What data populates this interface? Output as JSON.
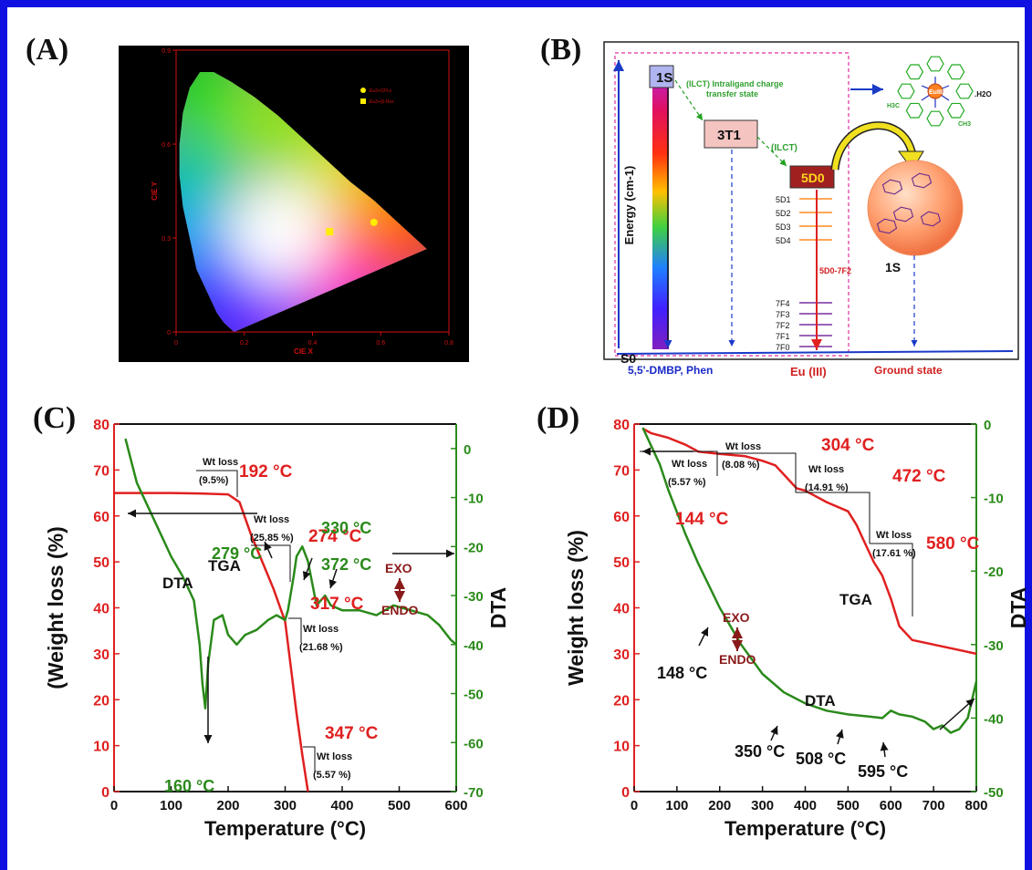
{
  "panel_labels": [
    "(A)",
    "(B)",
    "(C)",
    "(D)"
  ],
  "chart_data": [
    {
      "panel": "(A)",
      "type": "scatter",
      "xlabel": "CIE X",
      "ylabel": "CIE Y",
      "xlim": [
        0,
        0.8
      ],
      "ylim": [
        0,
        0.9
      ],
      "x_ticks": [
        "0",
        "0.2",
        "0.4",
        "0.6",
        "0.8"
      ],
      "y_ticks": [
        "0",
        "0.3",
        "0.6",
        "0.9"
      ],
      "legend": [
        "Eu3+CPLx",
        "Eu3+/β-Dex"
      ],
      "legend_placement": "top-right",
      "background": "#000000",
      "axis_color": "#d01010",
      "series": [
        {
          "name": "Eu3+CPLx",
          "marker": "circle",
          "color": "#ffee00",
          "x": [
            0.58
          ],
          "y": [
            0.35
          ]
        },
        {
          "name": "Eu3+/β-Dex",
          "marker": "square",
          "color": "#ffee00",
          "x": [
            0.45
          ],
          "y": [
            0.32
          ]
        }
      ],
      "locus": [
        [
          0.17,
          0.0
        ],
        [
          0.14,
          0.03
        ],
        [
          0.12,
          0.06
        ],
        [
          0.09,
          0.13
        ],
        [
          0.06,
          0.2
        ],
        [
          0.04,
          0.3
        ],
        [
          0.02,
          0.4
        ],
        [
          0.01,
          0.5
        ],
        [
          0.01,
          0.6
        ],
        [
          0.02,
          0.7
        ],
        [
          0.04,
          0.78
        ],
        [
          0.07,
          0.83
        ],
        [
          0.11,
          0.83
        ],
        [
          0.16,
          0.8
        ],
        [
          0.23,
          0.75
        ],
        [
          0.3,
          0.69
        ],
        [
          0.37,
          0.62
        ],
        [
          0.44,
          0.55
        ],
        [
          0.51,
          0.48
        ],
        [
          0.58,
          0.42
        ],
        [
          0.65,
          0.35
        ],
        [
          0.735,
          0.265
        ]
      ]
    },
    {
      "panel": "(C)",
      "type": "line",
      "xlabel": "Temperature (°C)",
      "ylabel": "(Weight loss (%)",
      "y2label": "DTA",
      "xlim": [
        0,
        600
      ],
      "ylim": [
        0,
        80
      ],
      "y2lim": [
        -70,
        5
      ],
      "x_ticks": [
        0,
        100,
        200,
        300,
        400,
        500,
        600
      ],
      "y_ticks": [
        0,
        10,
        20,
        30,
        40,
        50,
        60,
        70,
        80
      ],
      "y2_ticks": [
        0,
        -10,
        -20,
        -30,
        -40,
        -50,
        -60,
        -70
      ],
      "series": [
        {
          "name": "TGA",
          "axis": "left",
          "color": "#e02020",
          "x": [
            0,
            100,
            150,
            200,
            220,
            240,
            260,
            280,
            300,
            310,
            320,
            330,
            340
          ],
          "y": [
            65,
            65,
            64.9,
            64.7,
            63,
            56,
            50,
            44,
            37,
            27,
            17,
            8,
            0
          ]
        },
        {
          "name": "DTA",
          "axis": "right",
          "color": "#2a8a1a",
          "x": [
            20,
            40,
            60,
            80,
            100,
            120,
            140,
            150,
            155,
            160,
            165,
            175,
            190,
            200,
            215,
            230,
            250,
            270,
            285,
            300,
            305,
            315,
            320,
            330,
            340,
            355,
            370,
            380,
            400,
            430,
            460,
            490,
            520,
            550,
            570,
            590,
            600
          ],
          "y": [
            2,
            -7,
            -12,
            -17,
            -22,
            -26,
            -31,
            -40,
            -48,
            -53,
            -44,
            -35,
            -34,
            -38,
            -40,
            -38,
            -37,
            -35,
            -34,
            -35,
            -33,
            -26,
            -22,
            -20,
            -23,
            -32,
            -30,
            -32,
            -33,
            -33,
            -34,
            -32,
            -33,
            -34,
            -36,
            -39,
            -40
          ]
        }
      ],
      "annotations": {
        "tga": [
          {
            "temp": "192 °C",
            "loss_label": "Wt loss",
            "loss": "(9.5%)"
          },
          {
            "temp": "274 °C",
            "loss_label": "Wt loss",
            "loss": "(25.85 %)"
          },
          {
            "temp": "317 °C",
            "loss_label": "Wt loss",
            "loss": "(21.68 %)"
          },
          {
            "temp": "347 °C",
            "loss_label": "Wt loss",
            "loss": "(5.57 %)"
          }
        ],
        "dta": [
          "160 °C",
          "279 °C",
          "330 °C",
          "372 °C"
        ],
        "labels": {
          "tga": "TGA",
          "dta": "DTA",
          "exo": "EXO",
          "endo": "ENDO"
        }
      }
    },
    {
      "panel": "(D)",
      "type": "line",
      "xlabel": "Temperature (°C)",
      "ylabel": "Weight loss (%)",
      "y2label": "DTA",
      "xlim": [
        0,
        800
      ],
      "ylim": [
        0,
        80
      ],
      "y2lim": [
        -50,
        0
      ],
      "x_ticks": [
        0,
        100,
        200,
        300,
        400,
        500,
        600,
        700,
        800
      ],
      "y_ticks": [
        0,
        10,
        20,
        30,
        40,
        50,
        60,
        70,
        80
      ],
      "y2_ticks": [
        0,
        -10,
        -20,
        -30,
        -40,
        -50
      ],
      "series": [
        {
          "name": "TGA",
          "axis": "left",
          "color": "#e02020",
          "x": [
            20,
            40,
            80,
            120,
            150,
            200,
            260,
            300,
            330,
            350,
            370,
            380,
            400,
            450,
            500,
            520,
            540,
            560,
            580,
            600,
            620,
            650,
            700,
            750,
            800
          ],
          "y": [
            79,
            78,
            77,
            75.5,
            74,
            73.5,
            73,
            72,
            71,
            69,
            67,
            66,
            65.5,
            63,
            61,
            58,
            54,
            50,
            47,
            42,
            36,
            33,
            32,
            31,
            30
          ]
        },
        {
          "name": "DTA",
          "axis": "right",
          "color": "#2a8a1a",
          "x": [
            20,
            40,
            60,
            80,
            100,
            120,
            150,
            200,
            250,
            300,
            350,
            400,
            450,
            500,
            550,
            580,
            600,
            620,
            650,
            680,
            700,
            720,
            740,
            760,
            780,
            800
          ],
          "y": [
            -0.5,
            -3,
            -5.5,
            -9,
            -12,
            -15,
            -19,
            -25,
            -30,
            -34,
            -36.5,
            -38,
            -39,
            -39.5,
            -39.8,
            -40,
            -39,
            -39.5,
            -39.8,
            -40.5,
            -41.5,
            -41,
            -42,
            -41.5,
            -40,
            -35
          ]
        }
      ],
      "annotations": {
        "tga": [
          {
            "temp": "144 °C",
            "loss_label": "Wt loss",
            "loss": "(5.57 %)"
          },
          {
            "temp": "304 °C",
            "loss_label": "Wt loss",
            "loss": "(8.08 %)"
          },
          {
            "temp": "472 °C",
            "loss_label": "Wt loss",
            "loss": "(14.91 %)"
          },
          {
            "temp": "580 °C",
            "loss_label": "Wt loss",
            "loss": "(17.61 %)"
          }
        ],
        "dta": [
          "148 °C",
          "350 °C",
          "508 °C",
          "595 °C"
        ],
        "labels": {
          "tga": "TGA",
          "dta": "DTA",
          "exo": "EXO",
          "endo": "ENDO"
        }
      }
    }
  ],
  "diagram_b": {
    "singlet": "1S",
    "triplet": "3T1",
    "d0": "5D0",
    "ilct_long": "(ILCT) Intraligand charge",
    "ilct_long2": "transfer state",
    "ilct": "(ILCT)",
    "energy_axis": "Energy (cm-1)",
    "s0": "S0",
    "ligands": "5,5'-DMBP, Phen",
    "eu": "Eu (III)",
    "ground": "Ground state",
    "d_levels": [
      "5D1",
      "5D2",
      "5D3",
      "5D4"
    ],
    "f_levels": [
      "7F4",
      "7F3",
      "7F2",
      "7F1",
      "7F0"
    ],
    "transition": "5D0-7F2",
    "dextrin_label": "1S",
    "complex_metal": "EuIII",
    "water": ".H2O",
    "ch3_left": "H3C",
    "ch3_right": "CH3"
  },
  "colors": {
    "frame": "#1010e0",
    "tga": "#e02020",
    "dta": "#2a8a1a",
    "diagram_border": "#e030a0"
  }
}
